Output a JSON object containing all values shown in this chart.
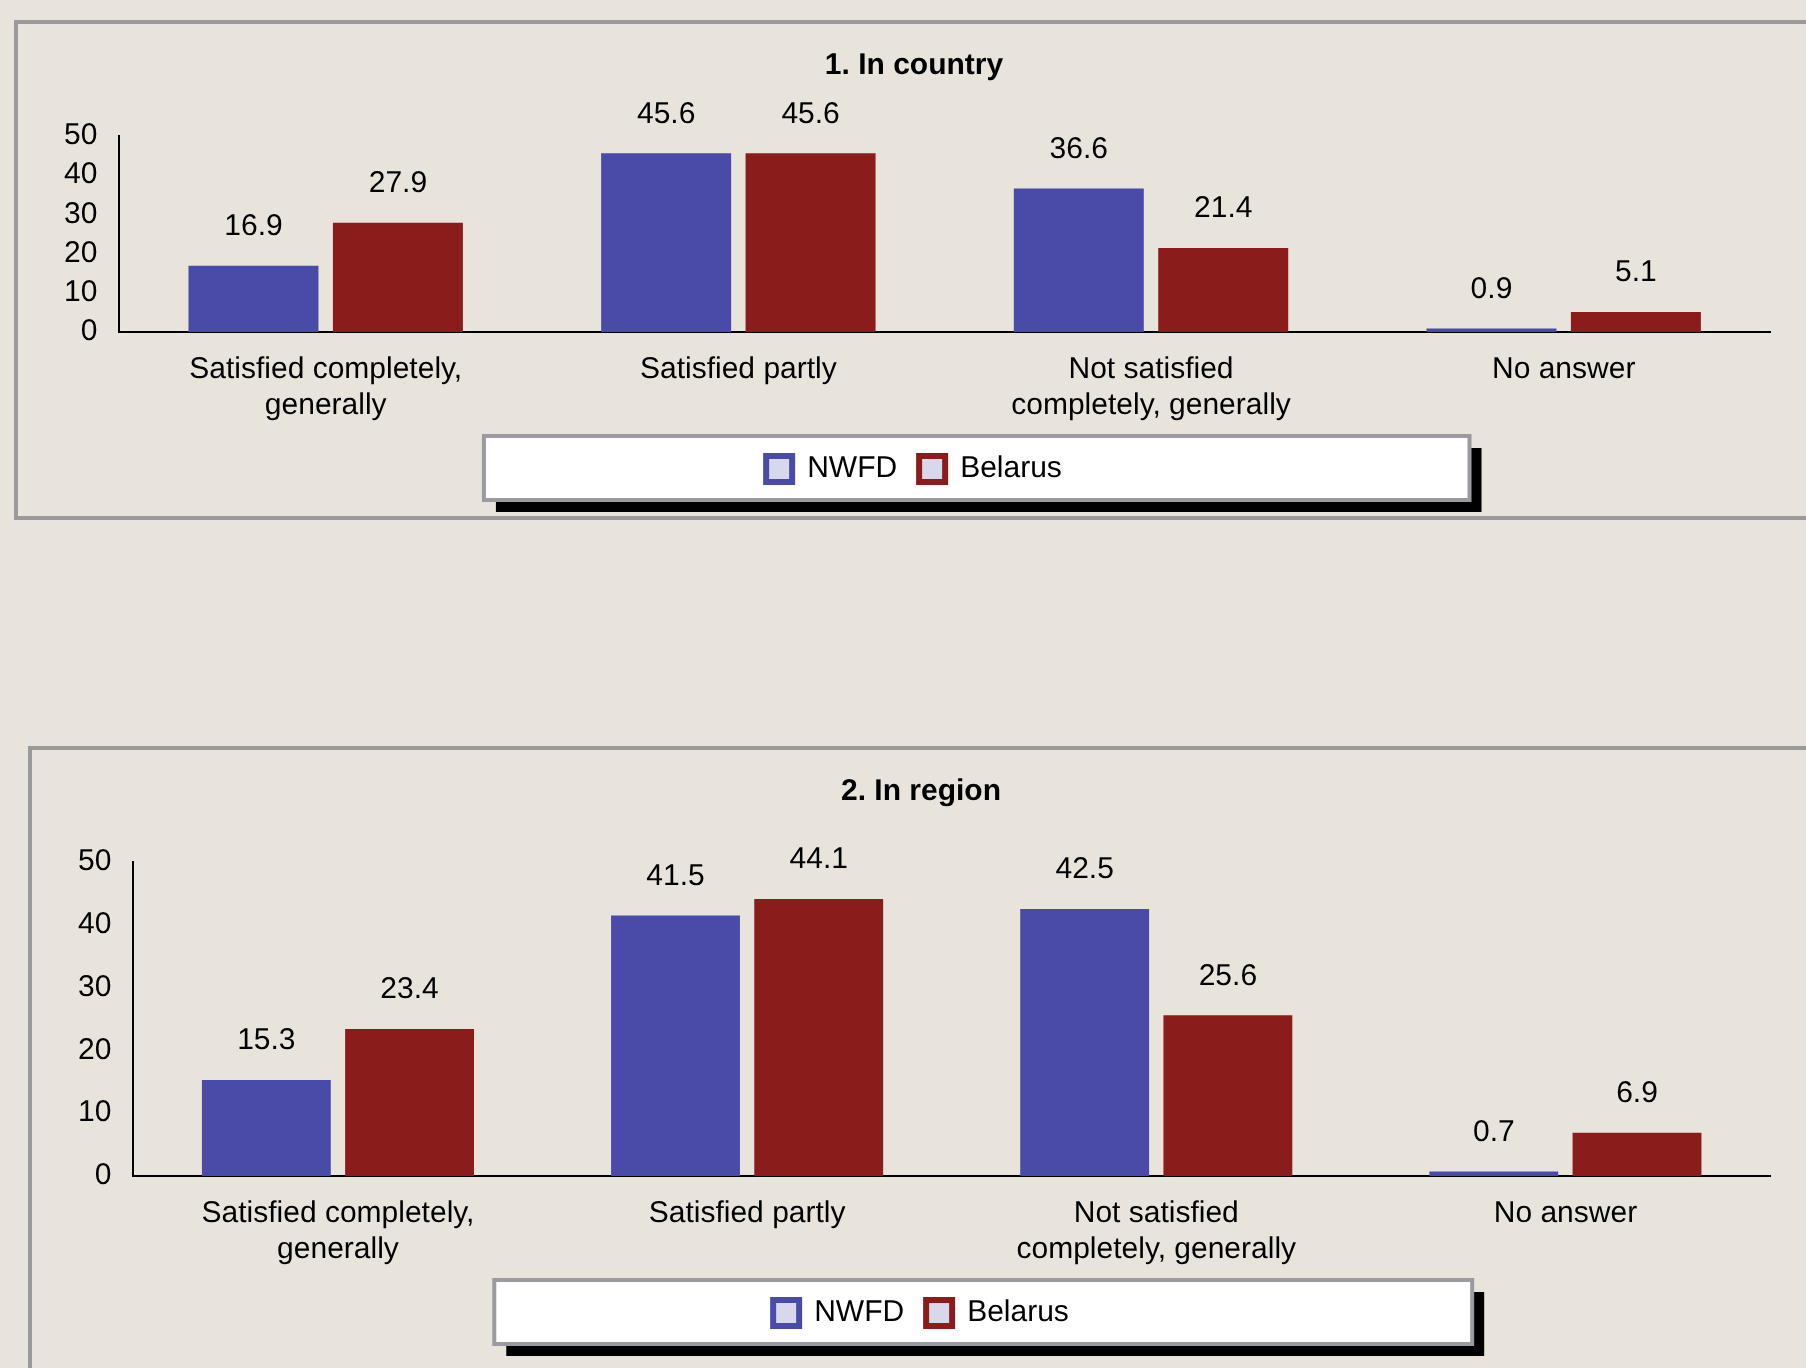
{
  "chart_data": [
    {
      "type": "bar",
      "title": "1. In country",
      "categories": [
        "Satisfied completely, generally",
        "Satisfied partly",
        "Not satisfied completely, generally",
        "No answer"
      ],
      "series": [
        {
          "name": "NWFD",
          "color": "#4a4aa8",
          "values": [
            16.9,
            45.6,
            36.6,
            0.9
          ]
        },
        {
          "name": "Belarus",
          "color": "#8b1c1c",
          "values": [
            27.9,
            45.6,
            21.4,
            5.1
          ]
        }
      ],
      "ylim": [
        0,
        50
      ],
      "yticks": [
        0,
        10,
        20,
        30,
        40,
        50
      ],
      "grid": false,
      "legend": "bottom",
      "data_labels": true
    },
    {
      "type": "bar",
      "title": "2. In region",
      "categories": [
        "Satisfied completely, generally",
        "Satisfied partly",
        "Not satisfied completely, generally",
        "No answer"
      ],
      "series": [
        {
          "name": "NWFD",
          "color": "#4a4aa8",
          "values": [
            15.3,
            41.5,
            42.5,
            0.7
          ]
        },
        {
          "name": "Belarus",
          "color": "#8b1c1c",
          "values": [
            23.4,
            44.1,
            25.6,
            6.9
          ]
        }
      ],
      "ylim": [
        0,
        50
      ],
      "yticks": [
        0,
        10,
        20,
        30,
        40,
        50
      ],
      "grid": false,
      "legend": "bottom",
      "data_labels": true
    }
  ]
}
